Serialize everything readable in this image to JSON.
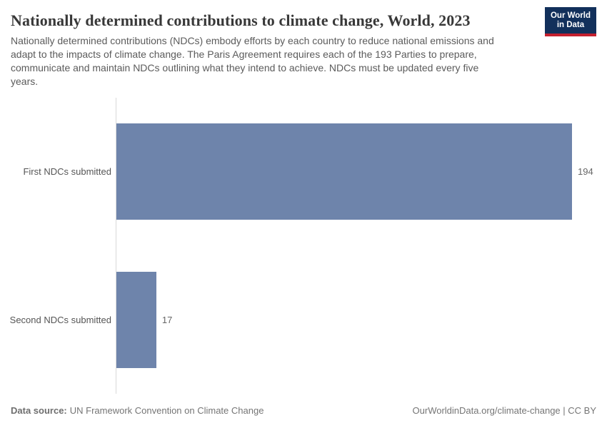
{
  "header": {
    "title": "Nationally determined contributions to climate change, World, 2023",
    "subtitle_lines": [
      "Nationally determined contributions (NDCs) embody efforts by each country to reduce national emissions and",
      "adapt to the impacts of climate change. The Paris Agreement requires each of the 193 Parties to prepare,",
      "communicate and maintain NDCs outlining what they intend to achieve. NDCs must be updated every five",
      "years."
    ],
    "logo": {
      "line1": "Our World",
      "line2": "in Data"
    }
  },
  "chart_data": {
    "type": "bar",
    "orientation": "horizontal",
    "title": "Nationally determined contributions to climate change, World, 2023",
    "entity": "World",
    "year": "2023",
    "categories": [
      "First NDCs submitted",
      "Second NDCs submitted"
    ],
    "values": [
      194,
      17
    ],
    "value_labels": [
      "194",
      "17"
    ],
    "xlabel": "",
    "ylabel": "",
    "xmax": 194,
    "grid": false,
    "legend": false
  },
  "footer": {
    "source_label": "Data source:",
    "source_text": "UN Framework Convention on Climate Change",
    "credit": "OurWorldinData.org/climate-change | CC BY"
  },
  "colors": {
    "bar": "#6e84ab",
    "axis_line": "#d9d9d9",
    "logo_navy": "#12305b",
    "logo_red": "#c4202e"
  }
}
